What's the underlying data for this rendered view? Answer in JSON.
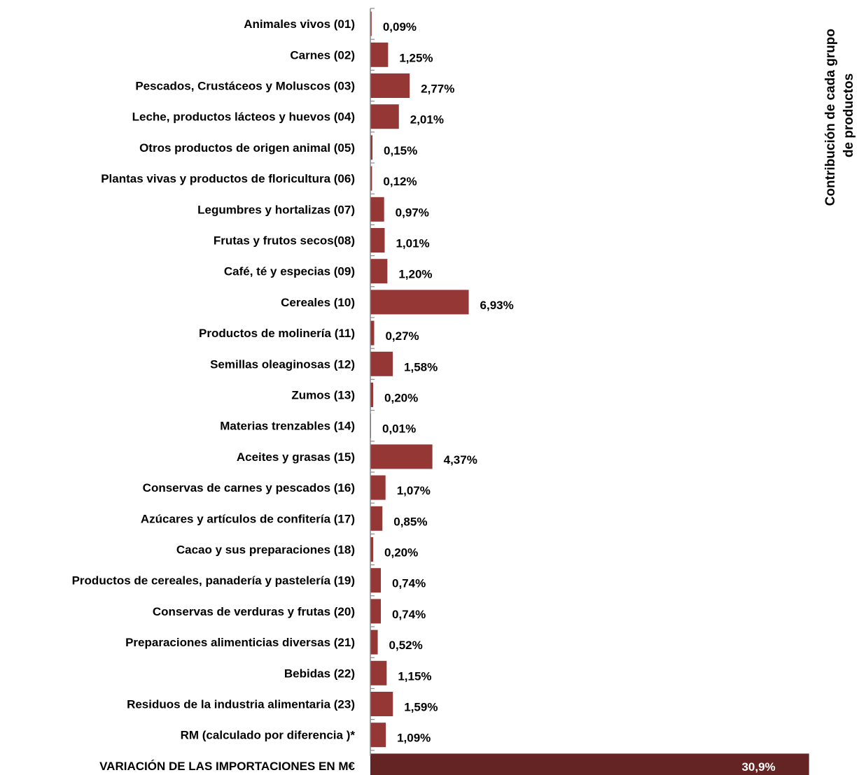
{
  "chart_data": {
    "type": "bar",
    "orientation": "horizontal",
    "categories": [
      "Animales vivos (01)",
      "Carnes  (02)",
      "Pescados, Crustáceos y Moluscos (03)",
      "Leche, productos lácteos y huevos (04)",
      "Otros productos de origen animal (05)",
      "Plantas vivas y productos de floricultura (06)",
      "Legumbres y hortalizas (07)",
      "Frutas y frutos secos(08)",
      "Café, té y especias (09)",
      "Cereales (10)",
      "Productos de molinería (11)",
      "Semillas oleaginosas (12)",
      "Zumos  (13)",
      "Materias trenzables (14)",
      "Aceites y grasas (15)",
      "Conservas de carnes y pescados (16)",
      "Azúcares y artículos de confitería (17)",
      "Cacao y sus preparaciones (18)",
      "Productos de cereales, panadería y pastelería (19)",
      "Conservas de verduras y frutas (20)",
      "Preparaciones alimenticias diversas (21)",
      "Bebidas (22)",
      "Residuos de la industria alimentaria (23)",
      "RM (calculado por diferencia )*",
      "VARIACIÓN DE LAS IMPORTACIONES EN M€"
    ],
    "values": [
      0.09,
      1.25,
      2.77,
      2.01,
      0.15,
      0.12,
      0.97,
      1.01,
      1.2,
      6.93,
      0.27,
      1.58,
      0.2,
      0.01,
      4.37,
      1.07,
      0.85,
      0.2,
      0.74,
      0.74,
      0.52,
      1.15,
      1.59,
      1.09,
      30.9
    ],
    "value_labels": [
      "0,09%",
      "1,25%",
      "2,77%",
      "2,01%",
      "0,15%",
      "0,12%",
      "0,97%",
      "1,01%",
      "1,20%",
      "6,93%",
      "0,27%",
      "1,58%",
      "0,20%",
      "0,01%",
      "4,37%",
      "1,07%",
      "0,85%",
      "0,20%",
      "0,74%",
      "0,74%",
      "0,52%",
      "1,15%",
      "1,59%",
      "1,09%",
      "30,9%"
    ],
    "unit": "%",
    "title": "Contribución de cada grupo de productos",
    "title_lines": [
      "Contribución de cada grupo",
      "de productos"
    ],
    "title_orientation": "vertical",
    "xlim": [
      0,
      31
    ],
    "grid": false,
    "legend": "none",
    "colors": {
      "bar": "#953735",
      "total_bar": "#632423",
      "axis": "#898989",
      "text": "#000000",
      "total_text": "#ffffff"
    }
  }
}
